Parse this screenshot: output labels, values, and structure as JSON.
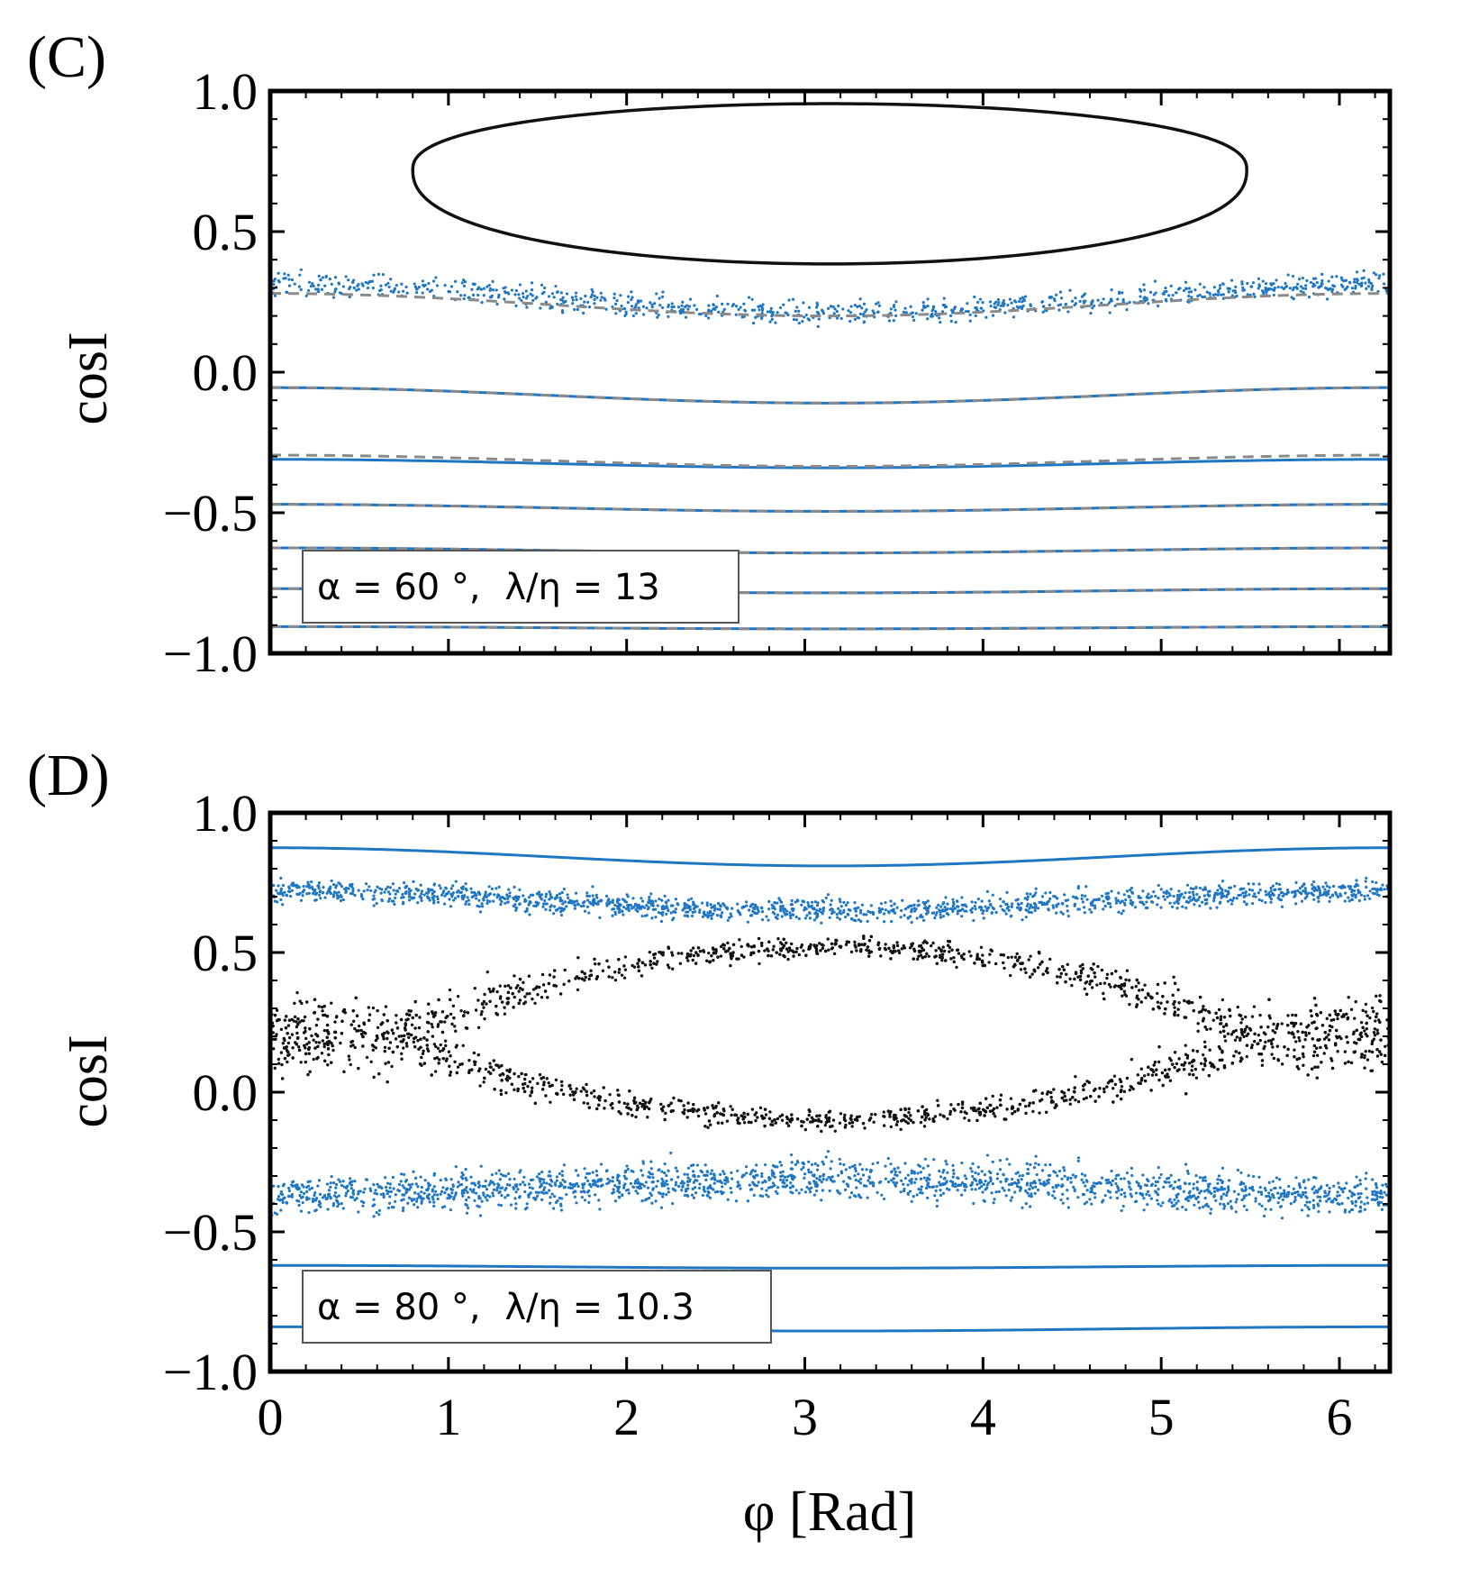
{
  "chart_data": [
    {
      "panel_label": "(C)",
      "type": "scatter",
      "title": "",
      "xlabel": "",
      "ylabel": "cosI",
      "xlim": [
        0,
        6.283
      ],
      "ylim": [
        -1.0,
        1.0
      ],
      "xticks": [
        0,
        1,
        2,
        3,
        4,
        5,
        6
      ],
      "xtick_labels": [
        "",
        "",
        "",
        "",
        "",
        "",
        ""
      ],
      "yticks": [
        1.0,
        0.5,
        0.0,
        -0.5,
        -1.0
      ],
      "ytick_labels": [
        "1.0",
        "0.5",
        "0.0",
        "−0.5",
        "−1.0"
      ],
      "legend": {
        "location": "bottom-left",
        "alpha": "α = 60 °,",
        "ratio": "λ/η = 13"
      },
      "colors": {
        "scatter": "#1f77c4",
        "separatrix": "#111111",
        "analytic": "#8a8a8a"
      },
      "series": [
        {
          "name": "libration-island",
          "kind": "closed-curve",
          "color": "#111111",
          "phi_range": [
            0.8,
            5.48
          ],
          "center": 0.72,
          "top": 0.955,
          "bottom": 0.385
        },
        {
          "name": "orbit-1",
          "kind": "dots",
          "color": "#1f77c4",
          "mean": 0.315,
          "amplitude": 0.105,
          "spread": 0.07,
          "count": 900
        },
        {
          "name": "orbit-2",
          "kind": "line",
          "color": "#1f77c4",
          "mean": -0.055,
          "amplitude": 0.055
        },
        {
          "name": "orbit-3",
          "kind": "line",
          "color": "#1f77c4",
          "mean": -0.31,
          "amplitude": 0.03
        },
        {
          "name": "orbit-4",
          "kind": "line",
          "color": "#1f77c4",
          "mean": -0.47,
          "amplitude": 0.025
        },
        {
          "name": "orbit-5",
          "kind": "line",
          "color": "#1f77c4",
          "mean": -0.625,
          "amplitude": 0.018
        },
        {
          "name": "orbit-6",
          "kind": "line",
          "color": "#1f77c4",
          "mean": -0.77,
          "amplitude": 0.015
        },
        {
          "name": "orbit-7",
          "kind": "line",
          "color": "#1f77c4",
          "mean": -0.905,
          "amplitude": 0.008
        },
        {
          "name": "analytic-1",
          "kind": "dashed",
          "color": "#8a8a8a",
          "mean": 0.28,
          "amplitude": 0.08
        },
        {
          "name": "analytic-2",
          "kind": "dashed",
          "color": "#8a8a8a",
          "mean": -0.055,
          "amplitude": 0.055
        },
        {
          "name": "analytic-3",
          "kind": "dashed",
          "color": "#8a8a8a",
          "mean": -0.295,
          "amplitude": 0.04
        },
        {
          "name": "analytic-4",
          "kind": "dashed",
          "color": "#8a8a8a",
          "mean": -0.47,
          "amplitude": 0.025
        },
        {
          "name": "analytic-5",
          "kind": "dashed",
          "color": "#8a8a8a",
          "mean": -0.625,
          "amplitude": 0.018
        },
        {
          "name": "analytic-6",
          "kind": "dashed",
          "color": "#8a8a8a",
          "mean": -0.77,
          "amplitude": 0.015
        },
        {
          "name": "analytic-7",
          "kind": "dashed",
          "color": "#8a8a8a",
          "mean": -0.905,
          "amplitude": 0.008
        }
      ]
    },
    {
      "panel_label": "(D)",
      "type": "scatter",
      "title": "",
      "xlabel": "φ [Rad]",
      "ylabel": "cosI",
      "xlim": [
        0,
        6.283
      ],
      "ylim": [
        -1.0,
        1.0
      ],
      "xticks": [
        0,
        1,
        2,
        3,
        4,
        5,
        6
      ],
      "xtick_labels": [
        "0",
        "1",
        "2",
        "3",
        "4",
        "5",
        "6"
      ],
      "yticks": [
        1.0,
        0.5,
        0.0,
        -0.5,
        -1.0
      ],
      "ytick_labels": [
        "1.0",
        "0.5",
        "0.0",
        "−0.5",
        "−1.0"
      ],
      "legend": {
        "location": "bottom-left",
        "alpha": "α = 80 °,",
        "ratio": "λ/η = 10.3"
      },
      "colors": {
        "scatter": "#1f77c4",
        "chaotic": "#111111"
      },
      "series": [
        {
          "name": "orbit-top",
          "kind": "line",
          "color": "#1f77c4",
          "mean": 0.875,
          "amplitude": 0.065
        },
        {
          "name": "orbit-upper-band",
          "kind": "dots",
          "color": "#1f77c4",
          "mean": 0.72,
          "amplitude": 0.07,
          "spread": 0.07,
          "count": 1500
        },
        {
          "name": "chaotic-sea",
          "kind": "ring-dots",
          "color": "#111111",
          "phi_center": 3.14,
          "center": 0.2,
          "upper": [
            0.2,
            0.52
          ],
          "lower": [
            0.2,
            -0.1
          ],
          "count": 2600
        },
        {
          "name": "orbit-lower-band",
          "kind": "dots",
          "color": "#1f77c4",
          "mean": -0.37,
          "amplitude": -0.06,
          "spread": 0.12,
          "count": 1800
        },
        {
          "name": "orbit-5",
          "kind": "line",
          "color": "#1f77c4",
          "mean": -0.62,
          "amplitude": 0.01
        },
        {
          "name": "orbit-6",
          "kind": "line",
          "color": "#1f77c4",
          "mean": -0.84,
          "amplitude": 0.015
        }
      ]
    }
  ]
}
